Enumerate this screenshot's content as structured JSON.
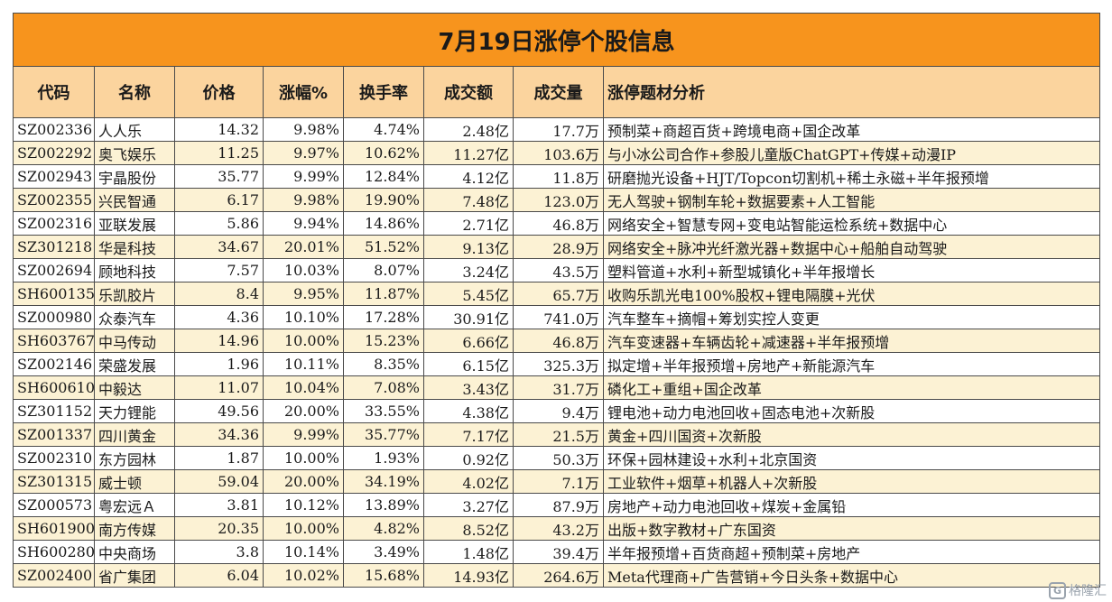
{
  "title": "7月19日涨停个股信息",
  "columns": [
    "代码",
    "名称",
    "价格",
    "涨幅%",
    "换手率",
    "成交额",
    "成交量",
    "涨停题材分析"
  ],
  "rows": [
    [
      "SZ002336",
      "人人乐",
      "14.32",
      "9.98%",
      "4.74%",
      "2.48亿",
      "17.7万",
      "预制菜+商超百货+跨境电商+国企改革"
    ],
    [
      "SZ002292",
      "奥飞娱乐",
      "11.25",
      "9.97%",
      "10.62%",
      "11.27亿",
      "103.6万",
      "与小冰公司合作+参股儿童版ChatGPT+传媒+动漫IP"
    ],
    [
      "SZ002943",
      "宇晶股份",
      "35.77",
      "9.99%",
      "12.84%",
      "4.12亿",
      "11.8万",
      "研磨抛光设备+HJT/Topcon切割机+稀土永磁+半年报预增"
    ],
    [
      "SZ002355",
      "兴民智通",
      "6.17",
      "9.98%",
      "19.90%",
      "7.48亿",
      "123.0万",
      "无人驾驶+钢制车轮+数据要素+人工智能"
    ],
    [
      "SZ002316",
      "亚联发展",
      "5.86",
      "9.94%",
      "14.86%",
      "2.71亿",
      "46.8万",
      "网络安全+智慧专网+变电站智能运检系统+数据中心"
    ],
    [
      "SZ301218",
      "华是科技",
      "34.67",
      "20.01%",
      "51.52%",
      "9.13亿",
      "28.9万",
      "网络安全+脉冲光纤激光器+数据中心+船舶自动驾驶"
    ],
    [
      "SZ002694",
      "顾地科技",
      "7.57",
      "10.03%",
      "8.07%",
      "3.24亿",
      "43.5万",
      "塑料管道+水利+新型城镇化+半年报增长"
    ],
    [
      "SH600135",
      "乐凯胶片",
      "8.4",
      "9.95%",
      "11.87%",
      "5.45亿",
      "65.7万",
      "收购乐凯光电100%股权+锂电隔膜+光伏"
    ],
    [
      "SZ000980",
      "众泰汽车",
      "4.36",
      "10.10%",
      "17.28%",
      "30.91亿",
      "741.0万",
      "汽车整车+摘帽+筹划实控人变更"
    ],
    [
      "SH603767",
      "中马传动",
      "14.96",
      "10.00%",
      "15.23%",
      "6.66亿",
      "46.8万",
      "汽车变速器+车辆齿轮+减速器+半年报预增"
    ],
    [
      "SZ002146",
      "荣盛发展",
      "1.96",
      "10.11%",
      "8.35%",
      "6.15亿",
      "325.3万",
      "拟定增+半年报预增+房地产+新能源汽车"
    ],
    [
      "SH600610",
      "中毅达",
      "11.07",
      "10.04%",
      "7.08%",
      "3.43亿",
      "31.7万",
      "磷化工+重组+国企改革"
    ],
    [
      "SZ301152",
      "天力锂能",
      "49.56",
      "20.00%",
      "33.55%",
      "4.38亿",
      "9.4万",
      "锂电池+动力电池回收+固态电池+次新股"
    ],
    [
      "SZ001337",
      "四川黄金",
      "34.36",
      "9.99%",
      "35.77%",
      "7.17亿",
      "21.5万",
      "黄金+四川国资+次新股"
    ],
    [
      "SZ002310",
      "东方园林",
      "1.87",
      "10.00%",
      "1.93%",
      "0.92亿",
      "50.3万",
      "环保+园林建设+水利+北京国资"
    ],
    [
      "SZ301315",
      "威士顿",
      "59.04",
      "20.00%",
      "34.19%",
      "4.02亿",
      "7.1万",
      "工业软件+烟草+机器人+次新股"
    ],
    [
      "SZ000573",
      "粤宏远Ａ",
      "3.81",
      "10.12%",
      "13.89%",
      "3.27亿",
      "87.9万",
      "房地产+动力电池回收+煤炭+金属铅"
    ],
    [
      "SH601900",
      "南方传媒",
      "20.35",
      "10.00%",
      "4.82%",
      "8.52亿",
      "43.2万",
      "出版+数字教材+广东国资"
    ],
    [
      "SH600280",
      "中央商场",
      "3.8",
      "10.14%",
      "3.49%",
      "1.48亿",
      "39.4万",
      "半年报预增+百货商超+预制菜+房地产"
    ],
    [
      "SZ002400",
      "省广集团",
      "6.04",
      "10.02%",
      "15.68%",
      "14.93亿",
      "264.6万",
      "Meta代理商+广告营销+今日头条+数据中心"
    ]
  ],
  "watermark": "格隆汇"
}
